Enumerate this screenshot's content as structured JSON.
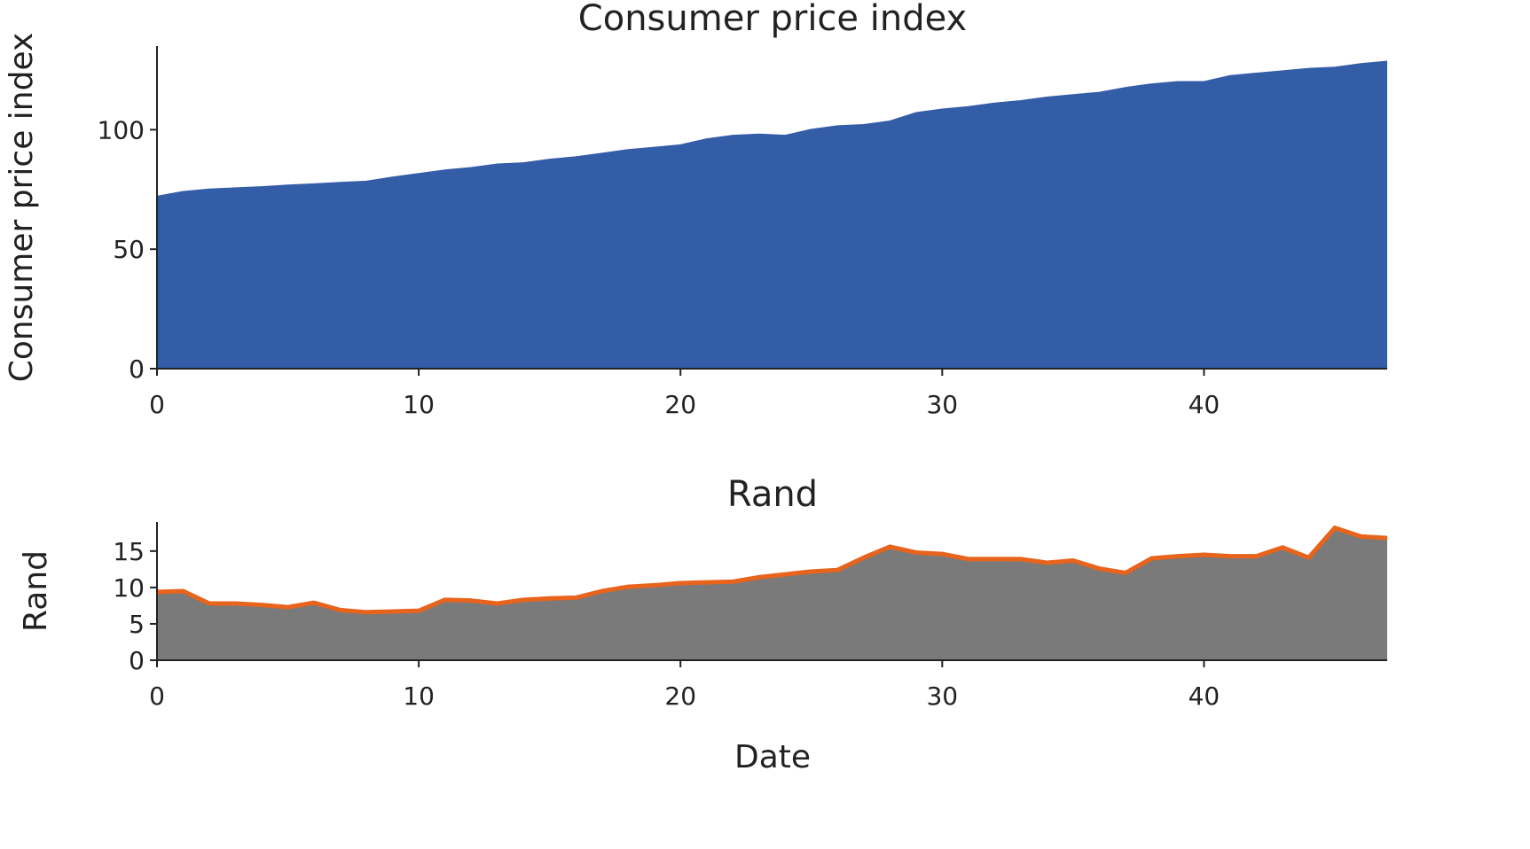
{
  "chart_data": [
    {
      "id": "cpi",
      "type": "area",
      "title": "Consumer price index",
      "xlabel": "",
      "ylabel": "Consumer price index",
      "xlim": [
        0,
        47
      ],
      "ylim": [
        0,
        135
      ],
      "xticks": [
        0,
        10,
        20,
        30,
        40
      ],
      "yticks": [
        0,
        50,
        100
      ],
      "fill_color": "#345da8",
      "line_color": "#345da8",
      "x": [
        0,
        1,
        2,
        3,
        4,
        5,
        6,
        7,
        8,
        9,
        10,
        11,
        12,
        13,
        14,
        15,
        16,
        17,
        18,
        19,
        20,
        21,
        22,
        23,
        24,
        25,
        26,
        27,
        28,
        29,
        30,
        31,
        32,
        33,
        34,
        35,
        36,
        37,
        38,
        39,
        40,
        41,
        42,
        43,
        44,
        45,
        46,
        47
      ],
      "values": [
        72,
        74,
        75,
        75.5,
        76,
        76.7,
        77.2,
        77.8,
        78.3,
        80,
        81.5,
        83,
        84,
        85.5,
        86,
        87.5,
        88.5,
        90,
        91.5,
        92.5,
        93.5,
        96,
        97.5,
        98,
        97.5,
        100,
        101.5,
        102,
        103.5,
        107,
        108.5,
        109.5,
        111,
        112,
        113.5,
        114.5,
        115.5,
        117.5,
        119,
        120,
        120,
        122.5,
        123.5,
        124.5,
        125.5,
        126,
        127.5,
        128.5
      ]
    },
    {
      "id": "rand",
      "type": "area",
      "title": "Rand",
      "xlabel": "Date",
      "ylabel": "Rand",
      "xlim": [
        0,
        47
      ],
      "ylim": [
        0,
        19
      ],
      "xticks": [
        0,
        10,
        20,
        30,
        40
      ],
      "yticks": [
        0,
        5,
        10,
        15
      ],
      "fill_color": "#7a7a7a",
      "line_color": "#e8631c",
      "x": [
        0,
        1,
        2,
        3,
        4,
        5,
        6,
        7,
        8,
        9,
        10,
        11,
        12,
        13,
        14,
        15,
        16,
        17,
        18,
        19,
        20,
        21,
        22,
        23,
        24,
        25,
        26,
        27,
        28,
        29,
        30,
        31,
        32,
        33,
        34,
        35,
        36,
        37,
        38,
        39,
        40,
        41,
        42,
        43,
        44,
        45,
        46,
        47
      ],
      "values": [
        9.4,
        9.5,
        7.8,
        7.8,
        7.6,
        7.3,
        7.9,
        6.9,
        6.6,
        6.7,
        6.8,
        8.3,
        8.2,
        7.8,
        8.3,
        8.5,
        8.6,
        9.5,
        10.1,
        10.3,
        10.6,
        10.7,
        10.8,
        11.4,
        11.8,
        12.2,
        12.4,
        14.1,
        15.6,
        14.8,
        14.6,
        13.9,
        13.9,
        13.9,
        13.4,
        13.7,
        12.6,
        12.0,
        14.0,
        14.3,
        14.5,
        14.3,
        14.3,
        15.5,
        14.1,
        18.2,
        17.0,
        16.8
      ]
    }
  ]
}
